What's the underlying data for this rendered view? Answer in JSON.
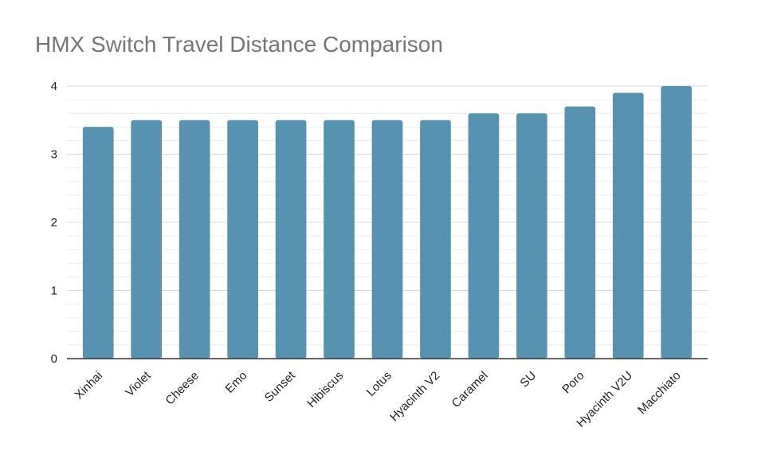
{
  "chart_data": {
    "type": "bar",
    "title": "HMX Switch Travel Distance Comparison",
    "xlabel": "",
    "ylabel": "",
    "categories": [
      "Xinhai",
      "Violet",
      "Cheese",
      "Emo",
      "Sunset",
      "Hibiscus",
      "Lotus",
      "Hyacinth V2",
      "Caramel",
      "SU",
      "Poro",
      "Hyacinth V2U",
      "Macchiato"
    ],
    "values": [
      3.4,
      3.5,
      3.5,
      3.5,
      3.5,
      3.5,
      3.5,
      3.5,
      3.6,
      3.6,
      3.7,
      3.9,
      4.0
    ],
    "ylim": [
      0,
      4
    ],
    "yticks": [
      "0",
      "1",
      "2",
      "3",
      "4"
    ],
    "grid": true,
    "minor_grid": true,
    "legend": "none",
    "bar_color": "#5793b0",
    "grid_color": "#d9d9d9",
    "axis_color": "#333333"
  }
}
